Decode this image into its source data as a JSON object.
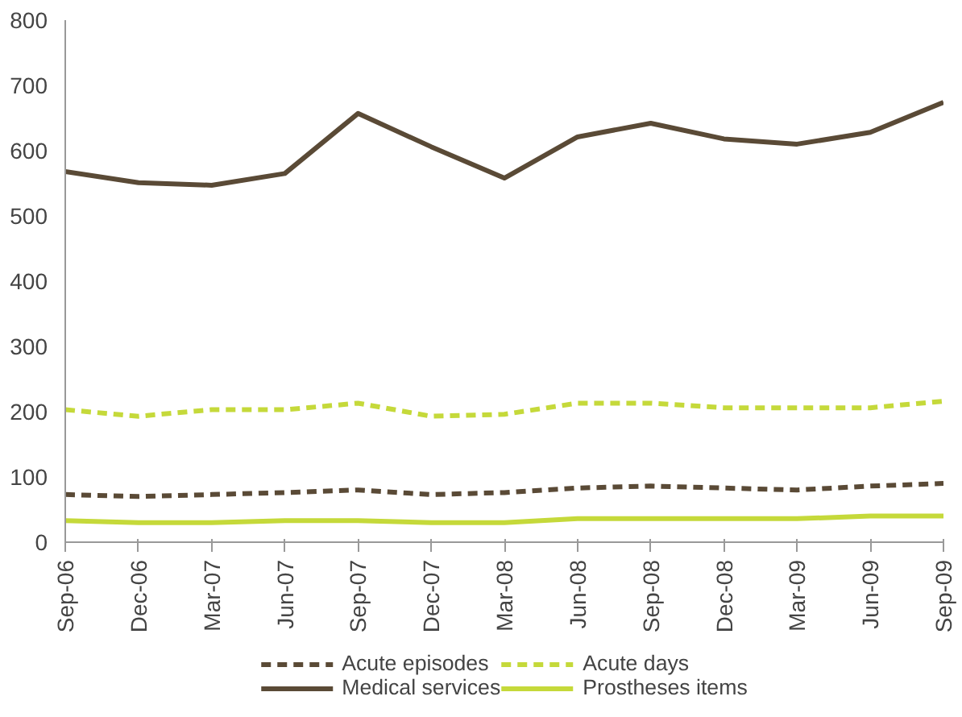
{
  "chart_data": {
    "type": "line",
    "categories": [
      "Sep-06",
      "Dec-06",
      "Mar-07",
      "Jun-07",
      "Sep-07",
      "Dec-07",
      "Mar-08",
      "Jun-08",
      "Sep-08",
      "Dec-08",
      "Mar-09",
      "Jun-09",
      "Sep-09"
    ],
    "series": [
      {
        "name": "Acute episodes",
        "color": "#5a4a36",
        "line_style": "dashed",
        "values": [
          73,
          70,
          73,
          76,
          80,
          73,
          76,
          83,
          86,
          83,
          80,
          86,
          90
        ]
      },
      {
        "name": "Acute days",
        "color": "#c5d93a",
        "line_style": "dashed",
        "values": [
          203,
          193,
          203,
          203,
          213,
          193,
          196,
          213,
          213,
          206,
          206,
          206,
          216
        ]
      },
      {
        "name": "Medical services",
        "color": "#5a4a36",
        "line_style": "solid",
        "values": [
          568,
          551,
          547,
          565,
          657,
          606,
          558,
          621,
          642,
          618,
          610,
          628,
          674
        ]
      },
      {
        "name": "Prostheses items",
        "color": "#c5d93a",
        "line_style": "solid",
        "values": [
          33,
          30,
          30,
          33,
          33,
          30,
          30,
          36,
          36,
          36,
          36,
          40,
          40
        ]
      }
    ],
    "ylim": [
      0,
      800
    ],
    "yticks": [
      0,
      100,
      200,
      300,
      400,
      500,
      600,
      700,
      800
    ],
    "grid": false,
    "legend": "bottom",
    "marker": "none"
  }
}
